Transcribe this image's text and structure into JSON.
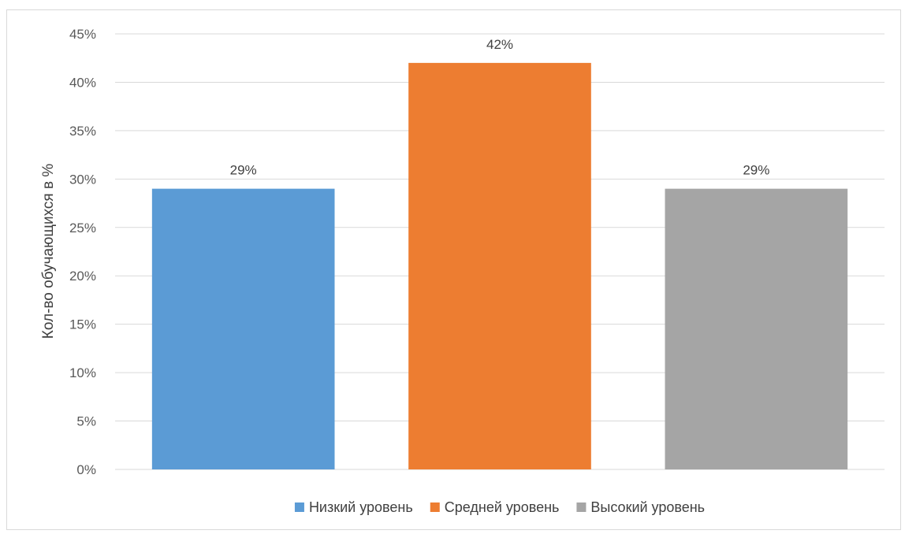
{
  "chart_data": {
    "type": "bar",
    "title": "",
    "xlabel": "",
    "ylabel": "Кол-во обучающихся в %",
    "ylim": [
      0,
      45
    ],
    "ytick_step": 5,
    "ytick_labels": [
      "0%",
      "5%",
      "10%",
      "15%",
      "20%",
      "25%",
      "30%",
      "35%",
      "40%",
      "45%"
    ],
    "grid": true,
    "legend_position": "bottom",
    "series": [
      {
        "name": "Низкий уровень",
        "value": 29,
        "label": "29%",
        "color": "#5B9BD5"
      },
      {
        "name": "Средней уровень",
        "value": 42,
        "label": "42%",
        "color": "#ED7D31"
      },
      {
        "name": "Высокий уровень",
        "value": 29,
        "label": "29%",
        "color": "#A5A5A5"
      }
    ]
  }
}
